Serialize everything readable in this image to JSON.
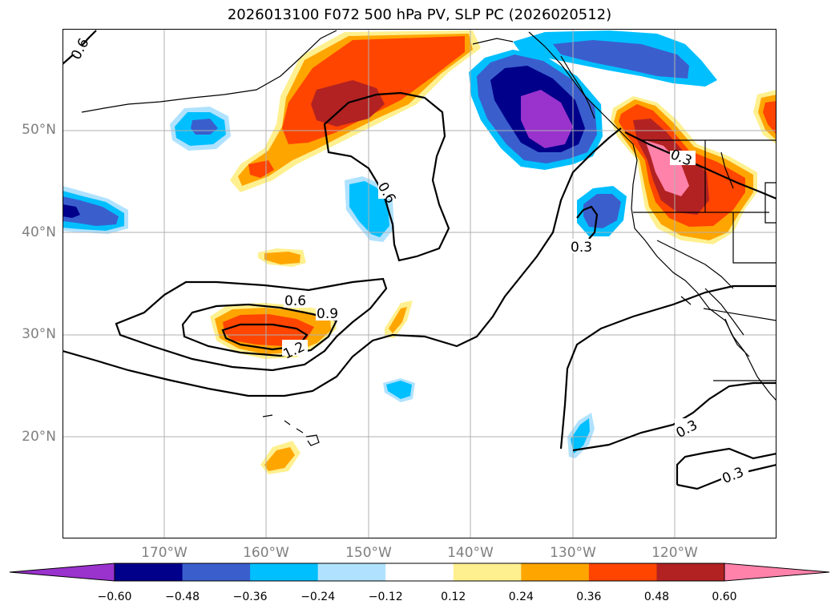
{
  "title": "2026013100 F072 500 hPa PV, SLP PC (2026020512)",
  "lat_labels": [
    "50°N",
    "40°N",
    "30°N",
    "20°N"
  ],
  "lon_labels": [
    "170°W",
    "160°W",
    "150°W",
    "140°W",
    "130°W",
    "120°W"
  ],
  "contour_labels": [
    "0.6",
    "0.6",
    "0.3",
    "0.6",
    "0.9",
    "1.2",
    "0.3",
    "0.3",
    "0.3"
  ],
  "colorbar": {
    "ticks": [
      "−0.60",
      "−0.48",
      "−0.36",
      "−0.24",
      "−0.12",
      "0.12",
      "0.24",
      "0.36",
      "0.48",
      "0.60"
    ],
    "colors": [
      "#9a32cd",
      "#00008b",
      "#3a5fcd",
      "#00bfff",
      "#b0e2ff",
      "#ffffff",
      "#fff08f",
      "#ffa500",
      "#ff4500",
      "#b22222",
      "#ff82ab"
    ]
  }
}
